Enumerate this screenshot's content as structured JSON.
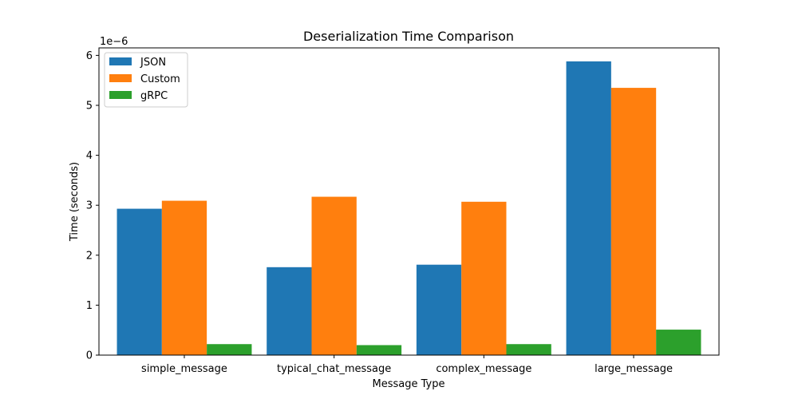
{
  "chart_data": {
    "type": "bar",
    "title": "Deserialization Time Comparison",
    "xlabel": "Message Type",
    "ylabel": "Time (seconds)",
    "y_scale_label": "1e−6",
    "categories": [
      "simple_message",
      "typical_chat_message",
      "complex_message",
      "large_message"
    ],
    "series": [
      {
        "name": "JSON",
        "color": "#1f77b4",
        "values": [
          2.93e-06,
          1.76e-06,
          1.81e-06,
          5.88e-06
        ]
      },
      {
        "name": "Custom",
        "color": "#ff7f0e",
        "values": [
          3.09e-06,
          3.17e-06,
          3.07e-06,
          5.35e-06
        ]
      },
      {
        "name": "gRPC",
        "color": "#2ca02c",
        "values": [
          2.2e-07,
          2e-07,
          2.2e-07,
          5.1e-07
        ]
      }
    ],
    "ylim": [
      0,
      6.15e-06
    ],
    "yticks": [
      0,
      1e-06,
      2e-06,
      3e-06,
      4e-06,
      5e-06,
      6e-06
    ],
    "ytick_labels": [
      "0",
      "1",
      "2",
      "3",
      "4",
      "5",
      "6"
    ],
    "grid": false,
    "legend_position": "top-left"
  }
}
